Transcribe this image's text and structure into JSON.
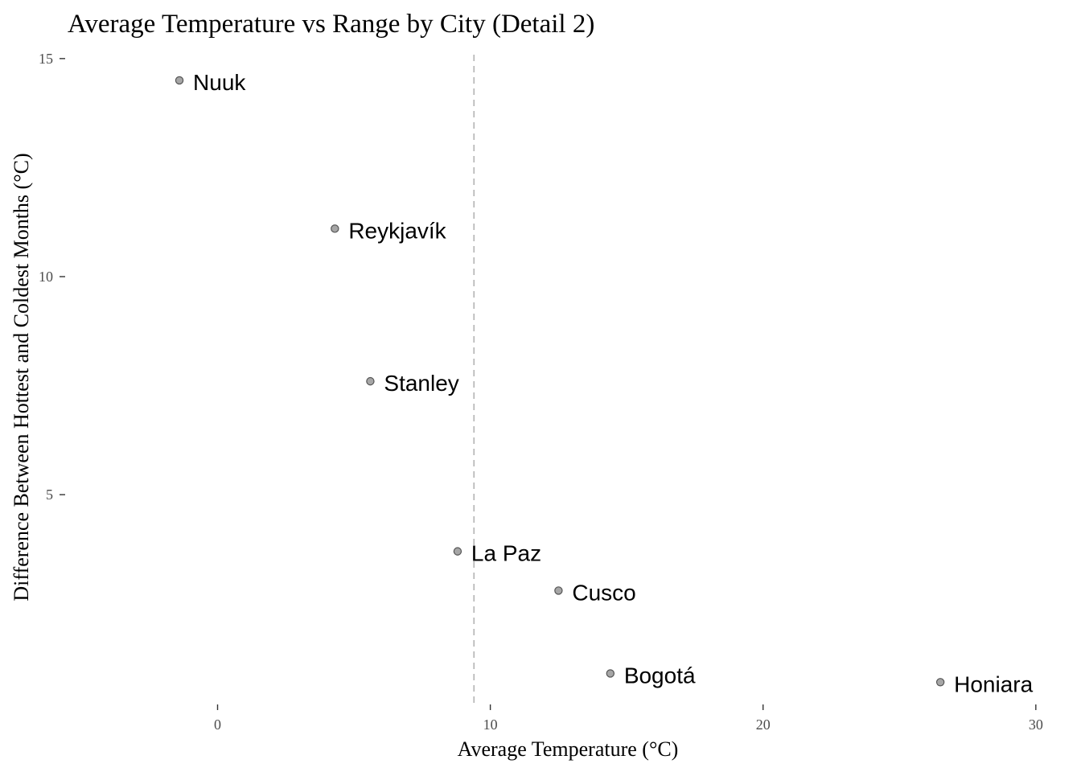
{
  "chart_data": {
    "type": "scatter",
    "title": "Average Temperature vs Range by City (Detail 2)",
    "xlabel": "Average Temperature (°C)",
    "ylabel": "Difference Between Hottest and Coldest Months (°C)",
    "xlim": [
      -5.5,
      30.3
    ],
    "ylim": [
      0.3,
      15.2
    ],
    "x_ticks": [
      0,
      10,
      20,
      30
    ],
    "y_ticks": [
      5,
      10,
      15
    ],
    "grid": false,
    "legend": "none",
    "reference_line": {
      "axis": "x",
      "value": 9.4,
      "style": "dashed",
      "color": "#b3b3b3"
    },
    "point_color": "#a6a6a6",
    "points": [
      {
        "label": "Nuuk",
        "x": -1.4,
        "y": 14.5
      },
      {
        "label": "Reykjavík",
        "x": 4.3,
        "y": 11.1
      },
      {
        "label": "Stanley",
        "x": 5.6,
        "y": 7.6
      },
      {
        "label": "La Paz",
        "x": 8.8,
        "y": 3.7
      },
      {
        "label": "Cusco",
        "x": 12.5,
        "y": 2.8
      },
      {
        "label": "Bogotá",
        "x": 14.4,
        "y": 0.9
      },
      {
        "label": "Honiara",
        "x": 26.5,
        "y": 0.7
      }
    ]
  }
}
